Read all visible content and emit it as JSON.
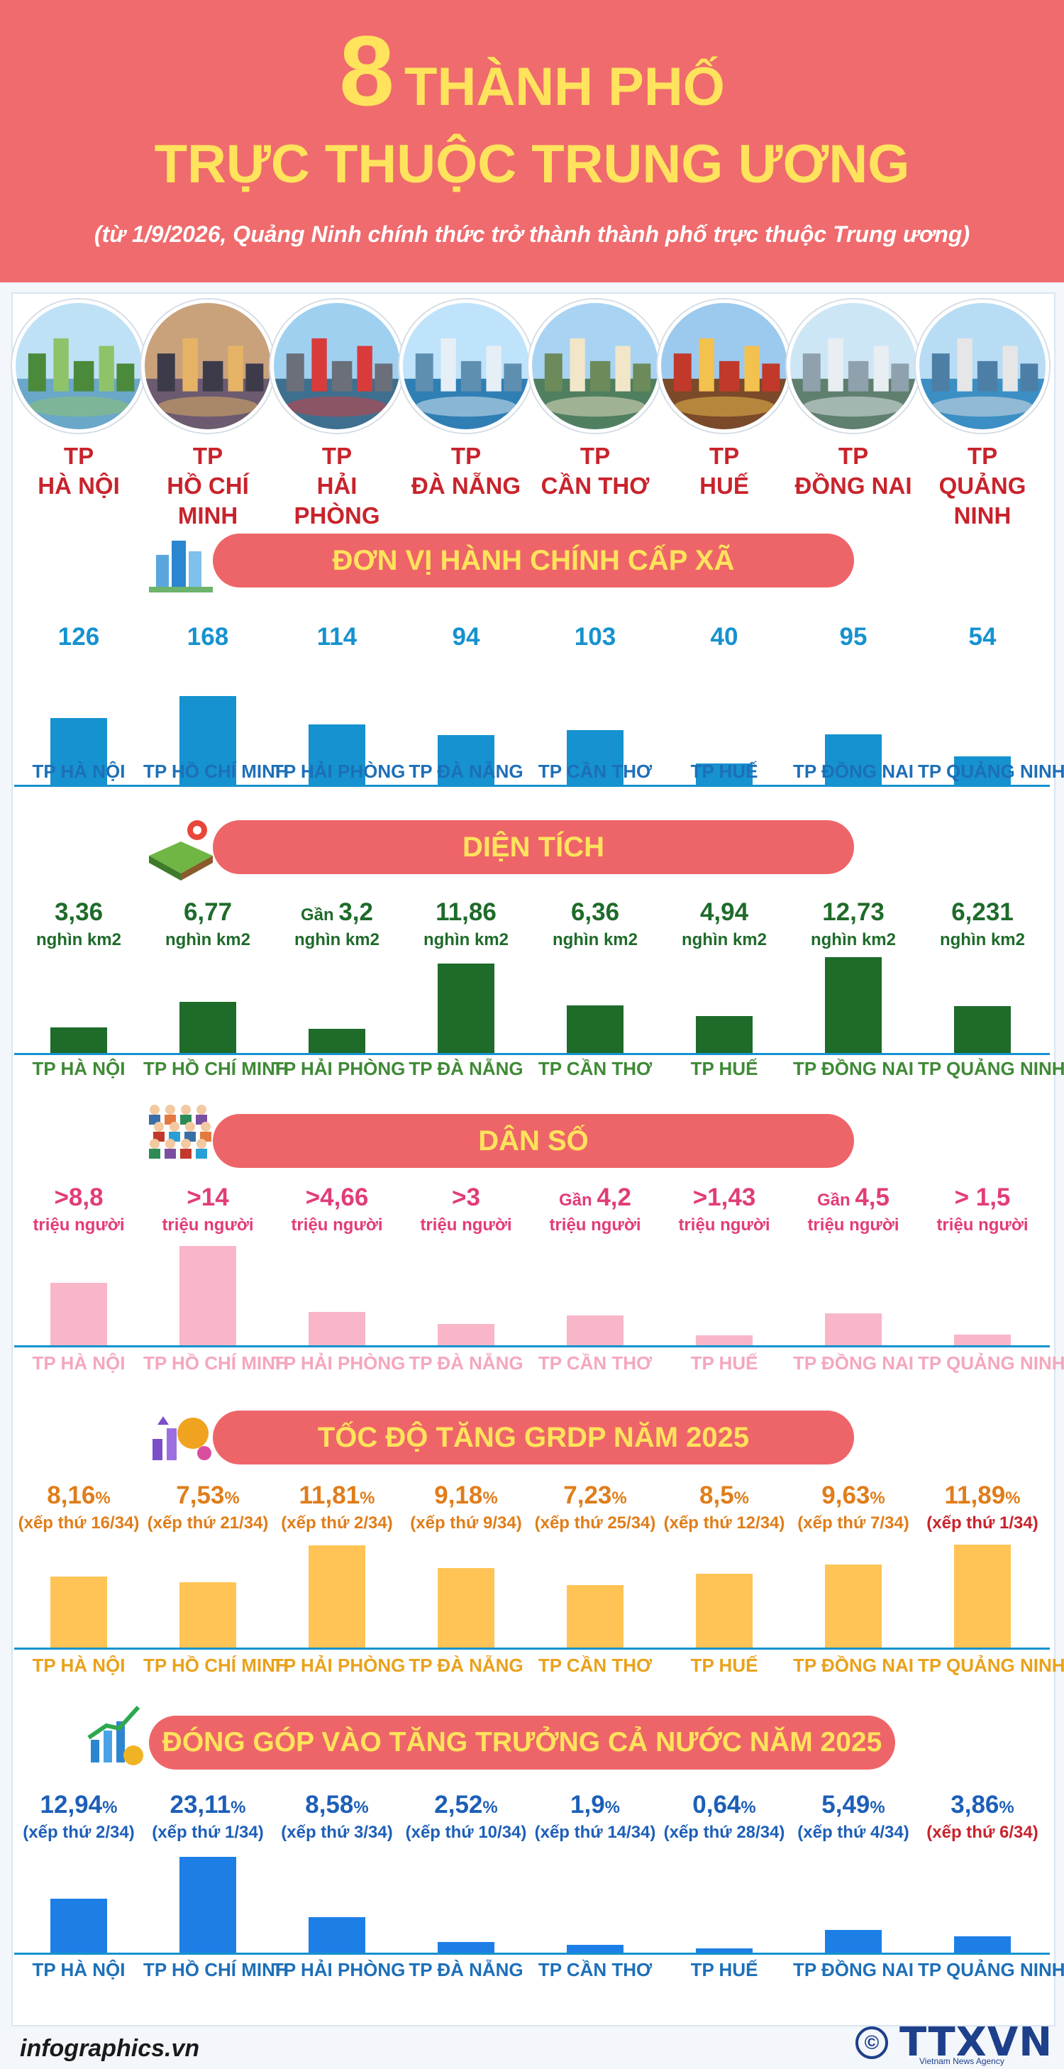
{
  "title": {
    "number": "8",
    "line1": "THÀNH PHỐ",
    "line2": "TRỰC THUỘC TRUNG ƯƠNG",
    "subtitle": "(từ 1/9/2026, Quảng Ninh chính thức trở thành thành phố trực thuộc Trung ương)"
  },
  "cities": [
    {
      "prefix": "TP",
      "name": "HÀ NỘI",
      "photo_icon": "ha-noi-photo"
    },
    {
      "prefix": "TP",
      "name": "HỒ CHÍ MINH",
      "photo_icon": "ho-chi-minh-photo"
    },
    {
      "prefix": "TP",
      "name": "HẢI PHÒNG",
      "photo_icon": "hai-phong-photo"
    },
    {
      "prefix": "TP",
      "name": "ĐÀ NẴNG",
      "photo_icon": "da-nang-photo"
    },
    {
      "prefix": "TP",
      "name": "CẦN THƠ",
      "photo_icon": "can-tho-photo"
    },
    {
      "prefix": "TP",
      "name": "HUẾ",
      "photo_icon": "hue-photo"
    },
    {
      "prefix": "TP",
      "name": "ĐỒNG NAI",
      "photo_icon": "dong-nai-photo"
    },
    {
      "prefix": "TP",
      "name": "QUẢNG NINH",
      "photo_icon": "quang-ninh-photo"
    }
  ],
  "chart_data": [
    {
      "type": "bar",
      "title": "ĐƠN VỊ HÀNH CHÍNH CẤP XÃ",
      "icon": "city-buildings-icon",
      "color": "#1592cf",
      "categories": [
        "TP HÀ NỘI",
        "TP HỒ CHÍ MINH",
        "TP HẢI PHÒNG",
        "TP ĐÀ NẴNG",
        "TP CẦN THƠ",
        "TP HUẾ",
        "TP ĐỒNG NAI",
        "TP QUẢNG NINH"
      ],
      "values": [
        126,
        168,
        114,
        94,
        103,
        40,
        95,
        54
      ],
      "labels": [
        {
          "prefix": "",
          "main": "126",
          "suffix": ""
        },
        {
          "prefix": "",
          "main": "168",
          "suffix": ""
        },
        {
          "prefix": "",
          "main": "114",
          "suffix": ""
        },
        {
          "prefix": "",
          "main": "94",
          "suffix": ""
        },
        {
          "prefix": "",
          "main": "103",
          "suffix": ""
        },
        {
          "prefix": "",
          "main": "40",
          "suffix": ""
        },
        {
          "prefix": "",
          "main": "95",
          "suffix": ""
        },
        {
          "prefix": "",
          "main": "54",
          "suffix": ""
        }
      ],
      "units": [
        "",
        "",
        "",
        "",
        "",
        "",
        "",
        ""
      ],
      "unit_colors": [
        "#1592cf",
        "#1592cf",
        "#1592cf",
        "#1592cf",
        "#1592cf",
        "#1592cf",
        "#1592cf",
        "#1592cf"
      ]
    },
    {
      "type": "bar",
      "title": "DIỆN TÍCH",
      "icon": "land-map-icon",
      "color": "#1e6b2a",
      "categories": [
        "TP HÀ NỘI",
        "TP HỒ CHÍ MINH",
        "TP HẢI PHÒNG",
        "TP ĐÀ NẴNG",
        "TP CẦN THƠ",
        "TP HUẾ",
        "TP ĐỒNG NAI",
        "TP QUẢNG NINH"
      ],
      "values": [
        3.36,
        6.77,
        3.2,
        11.86,
        6.36,
        4.94,
        12.73,
        6.231
      ],
      "labels": [
        {
          "prefix": "",
          "main": "3,36",
          "suffix": ""
        },
        {
          "prefix": "",
          "main": "6,77",
          "suffix": ""
        },
        {
          "prefix": "Gần ",
          "main": "3,2",
          "suffix": ""
        },
        {
          "prefix": "",
          "main": "11,86",
          "suffix": ""
        },
        {
          "prefix": "",
          "main": "6,36",
          "suffix": ""
        },
        {
          "prefix": "",
          "main": "4,94",
          "suffix": ""
        },
        {
          "prefix": "",
          "main": "12,73",
          "suffix": ""
        },
        {
          "prefix": "",
          "main": "6,231",
          "suffix": ""
        }
      ],
      "units": [
        "nghìn km2",
        "nghìn km2",
        "nghìn km2",
        "nghìn km2",
        "nghìn km2",
        "nghìn km2",
        "nghìn km2",
        "nghìn km2"
      ],
      "unit_colors": [
        "#1e6b2a",
        "#1e6b2a",
        "#1e6b2a",
        "#1e6b2a",
        "#1e6b2a",
        "#1e6b2a",
        "#1e6b2a",
        "#1e6b2a"
      ]
    },
    {
      "type": "bar",
      "title": "DÂN SỐ",
      "icon": "people-crowd-icon",
      "color": "#f9b6c8",
      "categories": [
        "TP HÀ NỘI",
        "TP HỒ CHÍ MINH",
        "TP HẢI PHÒNG",
        "TP ĐÀ NẴNG",
        "TP CẦN THƠ",
        "TP HUẾ",
        "TP ĐỒNG NAI",
        "TP QUẢNG NINH"
      ],
      "values": [
        8.8,
        14,
        4.66,
        3,
        4.2,
        1.43,
        4.5,
        1.5
      ],
      "labels": [
        {
          "prefix": "",
          "main": ">8,8",
          "suffix": ""
        },
        {
          "prefix": "",
          "main": ">14",
          "suffix": ""
        },
        {
          "prefix": "",
          "main": ">4,66",
          "suffix": ""
        },
        {
          "prefix": "",
          "main": ">3",
          "suffix": ""
        },
        {
          "prefix": "Gần ",
          "main": "4,2",
          "suffix": ""
        },
        {
          "prefix": "",
          "main": ">1,43",
          "suffix": ""
        },
        {
          "prefix": "Gần ",
          "main": "4,5",
          "suffix": ""
        },
        {
          "prefix": "",
          "main": "> 1,5",
          "suffix": ""
        }
      ],
      "units": [
        "triệu người",
        "triệu người",
        "triệu người",
        "triệu người",
        "triệu người",
        "triệu người",
        "triệu người",
        "triệu người"
      ],
      "unit_colors": [
        "#e23c79",
        "#e23c79",
        "#e23c79",
        "#e23c79",
        "#e23c79",
        "#e23c79",
        "#e23c79",
        "#e23c79"
      ]
    },
    {
      "type": "bar",
      "title": "TỐC ĐỘ TĂNG GRDP NĂM 2025",
      "icon": "growth-coin-icon",
      "color": "#ffc455",
      "categories": [
        "TP HÀ NỘI",
        "TP HỒ CHÍ MINH",
        "TP HẢI PHÒNG",
        "TP ĐÀ NẴNG",
        "TP CẦN THƠ",
        "TP HUẾ",
        "TP ĐỒNG NAI",
        "TP QUẢNG NINH"
      ],
      "values": [
        8.16,
        7.53,
        11.81,
        9.18,
        7.23,
        8.5,
        9.63,
        11.89
      ],
      "labels": [
        {
          "prefix": "",
          "main": "8,16",
          "suffix": "%"
        },
        {
          "prefix": "",
          "main": "7,53",
          "suffix": "%"
        },
        {
          "prefix": "",
          "main": "11,81",
          "suffix": "%"
        },
        {
          "prefix": "",
          "main": "9,18",
          "suffix": "%"
        },
        {
          "prefix": "",
          "main": "7,23",
          "suffix": "%"
        },
        {
          "prefix": "",
          "main": "8,5",
          "suffix": "%"
        },
        {
          "prefix": "",
          "main": "9,63",
          "suffix": "%"
        },
        {
          "prefix": "",
          "main": "11,89",
          "suffix": "%"
        }
      ],
      "units": [
        "(xếp thứ 16/34)",
        "(xếp thứ 21/34)",
        "(xếp thứ 2/34)",
        "(xếp thứ 9/34)",
        "(xếp thứ 25/34)",
        "(xếp thứ 12/34)",
        "(xếp thứ 7/34)",
        "(xếp thứ 1/34)"
      ],
      "unit_colors": [
        "#e07d1a",
        "#e07d1a",
        "#e07d1a",
        "#e07d1a",
        "#e07d1a",
        "#e07d1a",
        "#e07d1a",
        "#c8232c"
      ]
    },
    {
      "type": "bar",
      "title": "ĐÓNG GÓP VÀO TĂNG TRƯỞNG CẢ NƯỚC NĂM 2025",
      "icon": "growth-chart-icon",
      "color": "#1d7fe6",
      "categories": [
        "TP HÀ NỘI",
        "TP HỒ CHÍ MINH",
        "TP HẢI PHÒNG",
        "TP ĐÀ NẴNG",
        "TP CẦN THƠ",
        "TP HUẾ",
        "TP ĐỒNG NAI",
        "TP QUẢNG NINH"
      ],
      "values": [
        12.94,
        23.11,
        8.58,
        2.52,
        1.9,
        0.64,
        5.49,
        3.86
      ],
      "labels": [
        {
          "prefix": "",
          "main": "12,94",
          "suffix": "%"
        },
        {
          "prefix": "",
          "main": "23,11",
          "suffix": "%"
        },
        {
          "prefix": "",
          "main": "8,58",
          "suffix": "%"
        },
        {
          "prefix": "",
          "main": "2,52",
          "suffix": "%"
        },
        {
          "prefix": "",
          "main": "1,9",
          "suffix": "%"
        },
        {
          "prefix": "",
          "main": "0,64",
          "suffix": "%"
        },
        {
          "prefix": "",
          "main": "5,49",
          "suffix": "%"
        },
        {
          "prefix": "",
          "main": "3,86",
          "suffix": "%"
        }
      ],
      "units": [
        "(xếp thứ 2/34)",
        "(xếp thứ 1/34)",
        "(xếp thứ 3/34)",
        "(xếp thứ 10/34)",
        "(xếp thứ 14/34)",
        "(xếp thứ 28/34)",
        "(xếp thứ 4/34)",
        "(xếp thứ 6/34)"
      ],
      "unit_colors": [
        "#1d5fb8",
        "#1d5fb8",
        "#1d5fb8",
        "#1d5fb8",
        "#1d5fb8",
        "#1d5fb8",
        "#1d5fb8",
        "#c8232c"
      ]
    }
  ],
  "theme": {
    "header_bg": "#ef6b6d",
    "title_yellow": "#ffe35c",
    "city_red": "#c8232c",
    "banner_bg": "#ee6569"
  },
  "footer": {
    "source": "infographics.vn",
    "copyright": "©",
    "agency": "TTXVN",
    "agency_sub": "Vietnam News Agency"
  }
}
